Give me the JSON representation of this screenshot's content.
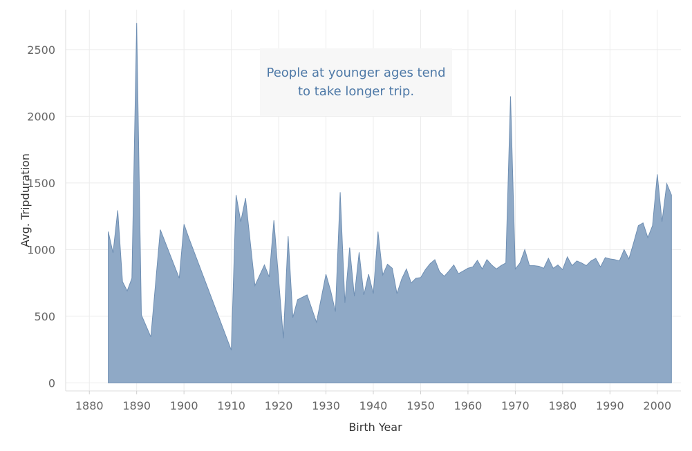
{
  "chart_data": {
    "type": "area",
    "xlabel": "Birth Year",
    "ylabel": "Avg. Tripduration",
    "annotation": "People at younger ages tend to take longer trip.",
    "xlim": [
      1875,
      2005
    ],
    "ylim": [
      -60,
      2800
    ],
    "x_ticks": [
      1880,
      1890,
      1900,
      1910,
      1920,
      1930,
      1940,
      1950,
      1960,
      1970,
      1980,
      1990,
      2000
    ],
    "y_ticks": [
      0,
      500,
      1000,
      1500,
      2000,
      2500
    ],
    "grid": true,
    "colors": {
      "fill": "#8fa9c6",
      "stroke": "#6f8fb3",
      "annotation_text": "#4e79a7"
    },
    "series": [
      {
        "x": [
          1884,
          1885,
          1886,
          1887,
          1888,
          1889,
          1890,
          1891,
          1893,
          1895,
          1899,
          1900,
          1901,
          1910,
          1911,
          1912,
          1913,
          1915,
          1917,
          1918,
          1919,
          1921,
          1922,
          1923,
          1924,
          1926,
          1928,
          1930,
          1931,
          1932,
          1933,
          1934,
          1935,
          1936,
          1937,
          1938,
          1939,
          1940,
          1941,
          1942,
          1943,
          1944,
          1945,
          1946,
          1947,
          1948,
          1949,
          1950,
          1951,
          1952,
          1953,
          1954,
          1955,
          1956,
          1957,
          1958,
          1959,
          1960,
          1961,
          1962,
          1963,
          1964,
          1965,
          1966,
          1967,
          1968,
          1969,
          1970,
          1971,
          1972,
          1973,
          1974,
          1975,
          1976,
          1977,
          1978,
          1979,
          1980,
          1981,
          1982,
          1983,
          1984,
          1985,
          1986,
          1987,
          1988,
          1989,
          1990,
          1991,
          1992,
          1993,
          1994,
          1995,
          1996,
          1997,
          1998,
          1999,
          2000,
          2001,
          2002,
          2003
        ],
        "y": [
          1135,
          975,
          1295,
          760,
          690,
          785,
          2700,
          510,
          345,
          1150,
          785,
          1190,
          1090,
          245,
          1410,
          1210,
          1385,
          730,
          885,
          795,
          1220,
          335,
          1100,
          490,
          625,
          660,
          455,
          815,
          690,
          535,
          1430,
          600,
          1015,
          650,
          980,
          660,
          815,
          670,
          1135,
          810,
          890,
          860,
          670,
          780,
          855,
          750,
          785,
          790,
          850,
          895,
          925,
          835,
          800,
          840,
          885,
          820,
          840,
          860,
          870,
          920,
          855,
          925,
          885,
          855,
          880,
          900,
          2150,
          855,
          900,
          1000,
          880,
          880,
          875,
          860,
          935,
          860,
          885,
          850,
          945,
          880,
          915,
          900,
          880,
          915,
          935,
          870,
          940,
          930,
          925,
          915,
          1000,
          930,
          1050,
          1180,
          1200,
          1090,
          1180,
          1565,
          1210,
          1495,
          1410
        ]
      }
    ]
  }
}
